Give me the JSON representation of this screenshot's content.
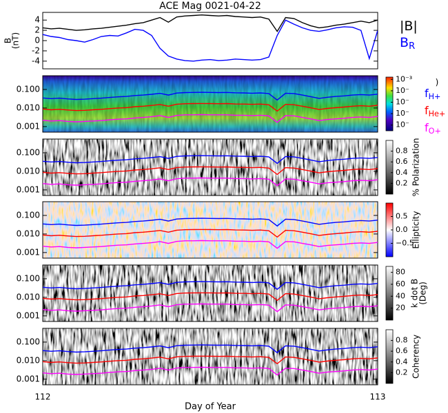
{
  "chart_data": [
    {
      "type": "line",
      "title": "ACE Mag 0021-04-22",
      "ylabel": [
        "B",
        "(nT)"
      ],
      "x": [
        112,
        112.025,
        112.05,
        112.075,
        112.1,
        112.125,
        112.15,
        112.175,
        112.2,
        112.225,
        112.25,
        112.275,
        112.3,
        112.325,
        112.35,
        112.375,
        112.4,
        112.425,
        112.45,
        112.475,
        112.5,
        112.525,
        112.55,
        112.575,
        112.6,
        112.625,
        112.65,
        112.675,
        112.7,
        112.725,
        112.75,
        112.775,
        112.8,
        112.825,
        112.85,
        112.875,
        112.9,
        112.925,
        112.95,
        112.975,
        113
      ],
      "xlim": [
        112,
        113
      ],
      "xticks": [
        112,
        113
      ],
      "ylim": [
        -5.5,
        5.5
      ],
      "yticks": [
        -4,
        -2,
        0,
        2,
        4
      ],
      "series": [
        {
          "name": "|B|",
          "color": "#000000",
          "values": [
            2.5,
            2.3,
            2.4,
            2.2,
            2.0,
            2.1,
            2.3,
            2.4,
            2.6,
            2.8,
            3.0,
            3.3,
            3.5,
            4.0,
            4.5,
            3.6,
            4.6,
            4.8,
            4.9,
            5.0,
            4.9,
            4.8,
            4.9,
            4.7,
            4.6,
            4.5,
            4.6,
            4.2,
            1.8,
            4.5,
            4.3,
            3.5,
            2.9,
            2.5,
            2.7,
            3.0,
            3.2,
            3.5,
            3.8,
            3.5,
            4.0
          ]
        },
        {
          "name": "B",
          "subscript": "R",
          "color": "#0000ff",
          "values": [
            1.2,
            0.8,
            0.6,
            0.2,
            0.0,
            -0.3,
            0.2,
            0.8,
            1.0,
            0.9,
            1.5,
            2.2,
            2.0,
            1.0,
            -1.5,
            -3.0,
            -3.6,
            -3.9,
            -4.0,
            -3.8,
            -3.7,
            -3.9,
            -3.8,
            -3.6,
            -3.7,
            -3.8,
            -3.7,
            -3.2,
            1.0,
            4.0,
            3.2,
            2.5,
            2.0,
            1.8,
            2.1,
            2.5,
            2.7,
            2.6,
            2.0,
            -3.5,
            2.0
          ]
        }
      ]
    },
    {
      "type": "spectrogram",
      "xlabel": "Day of Year",
      "x": [
        112,
        112.025,
        112.05,
        112.075,
        112.1,
        112.125,
        112.15,
        112.175,
        112.2,
        112.225,
        112.25,
        112.275,
        112.3,
        112.325,
        112.35,
        112.375,
        112.4,
        112.425,
        112.45,
        112.475,
        112.5,
        112.525,
        112.55,
        112.575,
        112.6,
        112.625,
        112.65,
        112.675,
        112.7,
        112.725,
        112.75,
        112.775,
        112.8,
        112.825,
        112.85,
        112.875,
        112.9,
        112.925,
        112.95,
        112.975,
        113
      ],
      "xlim": [
        112,
        113
      ],
      "xticks": [
        112,
        113
      ],
      "ylim": [
        0.0005,
        0.55
      ],
      "log_y": true,
      "yticks": [
        {
          "value": 0.001,
          "label": "0.001"
        },
        {
          "value": 0.01,
          "label": "0.010"
        },
        {
          "value": 0.1,
          "label": "0.100"
        }
      ],
      "series": [
        {
          "name": "f",
          "subscript": "H+",
          "color": "#0000ff",
          "values": [
            0.035,
            0.032,
            0.034,
            0.031,
            0.029,
            0.03,
            0.032,
            0.034,
            0.037,
            0.04,
            0.042,
            0.047,
            0.05,
            0.055,
            0.062,
            0.05,
            0.064,
            0.068,
            0.069,
            0.07,
            0.069,
            0.068,
            0.069,
            0.066,
            0.065,
            0.063,
            0.065,
            0.06,
            0.027,
            0.063,
            0.06,
            0.05,
            0.041,
            0.033,
            0.038,
            0.042,
            0.045,
            0.05,
            0.053,
            0.05,
            0.056
          ]
        },
        {
          "name": "f",
          "subscript": "He+",
          "color": "#ff0000",
          "values": [
            0.0088,
            0.008,
            0.0085,
            0.0078,
            0.0073,
            0.0075,
            0.008,
            0.0085,
            0.0093,
            0.01,
            0.0105,
            0.0118,
            0.0125,
            0.0138,
            0.0155,
            0.0125,
            0.016,
            0.017,
            0.0173,
            0.0175,
            0.0173,
            0.017,
            0.0173,
            0.0165,
            0.0163,
            0.0158,
            0.0163,
            0.015,
            0.0068,
            0.0158,
            0.015,
            0.0125,
            0.0103,
            0.0083,
            0.0095,
            0.0105,
            0.0113,
            0.0125,
            0.0133,
            0.0125,
            0.014
          ]
        },
        {
          "name": "f",
          "subscript": "O+",
          "color": "#ff00ff",
          "values": [
            0.0022,
            0.002,
            0.0021,
            0.0019,
            0.0018,
            0.0019,
            0.002,
            0.0021,
            0.0023,
            0.0025,
            0.0026,
            0.0029,
            0.0031,
            0.0034,
            0.0039,
            0.0031,
            0.004,
            0.0043,
            0.0043,
            0.0044,
            0.0043,
            0.0043,
            0.0043,
            0.0041,
            0.0041,
            0.0039,
            0.0041,
            0.0038,
            0.0017,
            0.0039,
            0.0038,
            0.0031,
            0.0026,
            0.0021,
            0.0024,
            0.0026,
            0.0028,
            0.0031,
            0.0033,
            0.0031,
            0.0035
          ]
        }
      ],
      "panels": [
        {
          "colormap": "jet",
          "colorbar_label": [
            ")"
          ],
          "clim": [
            -7.5,
            -2.8
          ],
          "cticks": [
            {
              "value": -3,
              "label": "10⁻³"
            },
            {
              "value": -4,
              "label": "10⁻"
            },
            {
              "value": -5,
              "label": "10⁻"
            },
            {
              "value": -6,
              "label": "10⁻"
            },
            {
              "value": -7,
              "label": "10⁻"
            }
          ]
        },
        {
          "colormap": "gray",
          "colorbar_label": [
            "% Polarization"
          ],
          "clim": [
            0,
            1
          ],
          "cticks": [
            0.2,
            0.4,
            0.6,
            0.8
          ]
        },
        {
          "colormap": "bwr",
          "colorbar_label": [
            "Ellipticity"
          ],
          "clim": [
            -1,
            1
          ],
          "cticks": [
            0.5,
            {
              "value": 0,
              "label": "0.0"
            },
            {
              "value": -0.5,
              "label": "−0.5"
            }
          ]
        },
        {
          "colormap": "gray",
          "colorbar_label": [
            "k dot B",
            "(Deg)"
          ],
          "clim": [
            0,
            90
          ],
          "cticks": [
            20,
            40,
            60,
            80
          ]
        },
        {
          "colormap": "gray",
          "colorbar_label": [
            "Coherency"
          ],
          "clim": [
            0,
            1
          ],
          "cticks": [
            0.2,
            0.4,
            0.6,
            0.8
          ]
        }
      ]
    }
  ]
}
